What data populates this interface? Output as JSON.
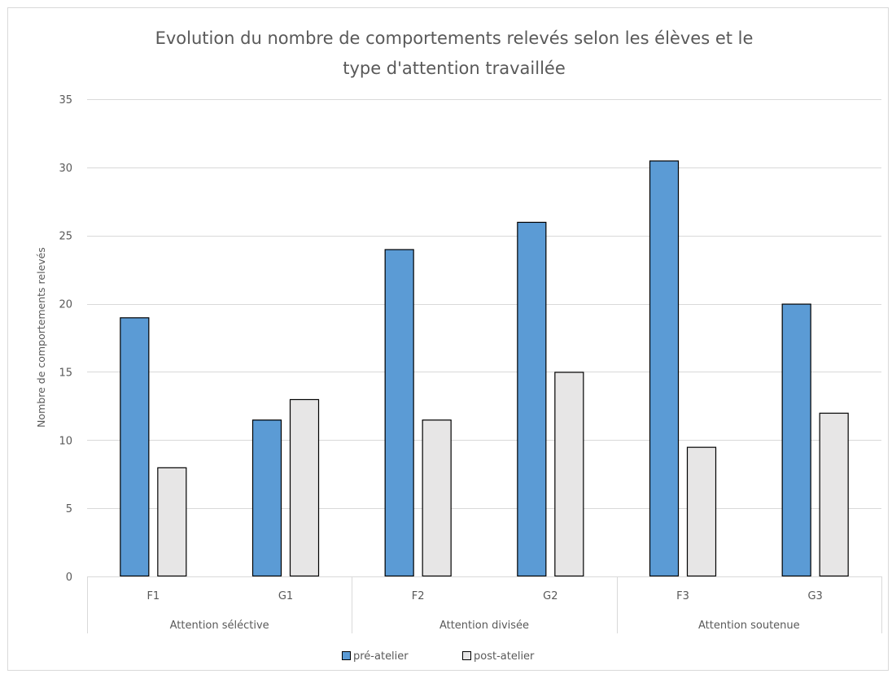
{
  "chart_data": {
    "type": "bar",
    "title": [
      "Evolution du nombre de comportements relevés selon les élèves et le",
      "type d'attention travaillée"
    ],
    "xlabel": "",
    "ylabel": "Nombre de comportements relevés",
    "ylim": [
      0,
      35
    ],
    "yticks": [
      0,
      5,
      10,
      15,
      20,
      25,
      30,
      35
    ],
    "grid": true,
    "legend_position": "bottom",
    "categories": [
      "F1",
      "G1",
      "F2",
      "G2",
      "F3",
      "G3"
    ],
    "groups": [
      {
        "label": "Attention séléctive",
        "categories": [
          "F1",
          "G1"
        ]
      },
      {
        "label": "Attention divisée",
        "categories": [
          "F2",
          "G2"
        ]
      },
      {
        "label": "Attention soutenue",
        "categories": [
          "F3",
          "G3"
        ]
      }
    ],
    "series": [
      {
        "name": "pré-atelier",
        "color": "#5b9bd5",
        "values": [
          19,
          11.5,
          24,
          26,
          30.5,
          20
        ]
      },
      {
        "name": "post-atelier",
        "color": "#e7e6e6",
        "values": [
          8,
          13,
          11.5,
          15,
          9.5,
          12
        ]
      }
    ]
  }
}
